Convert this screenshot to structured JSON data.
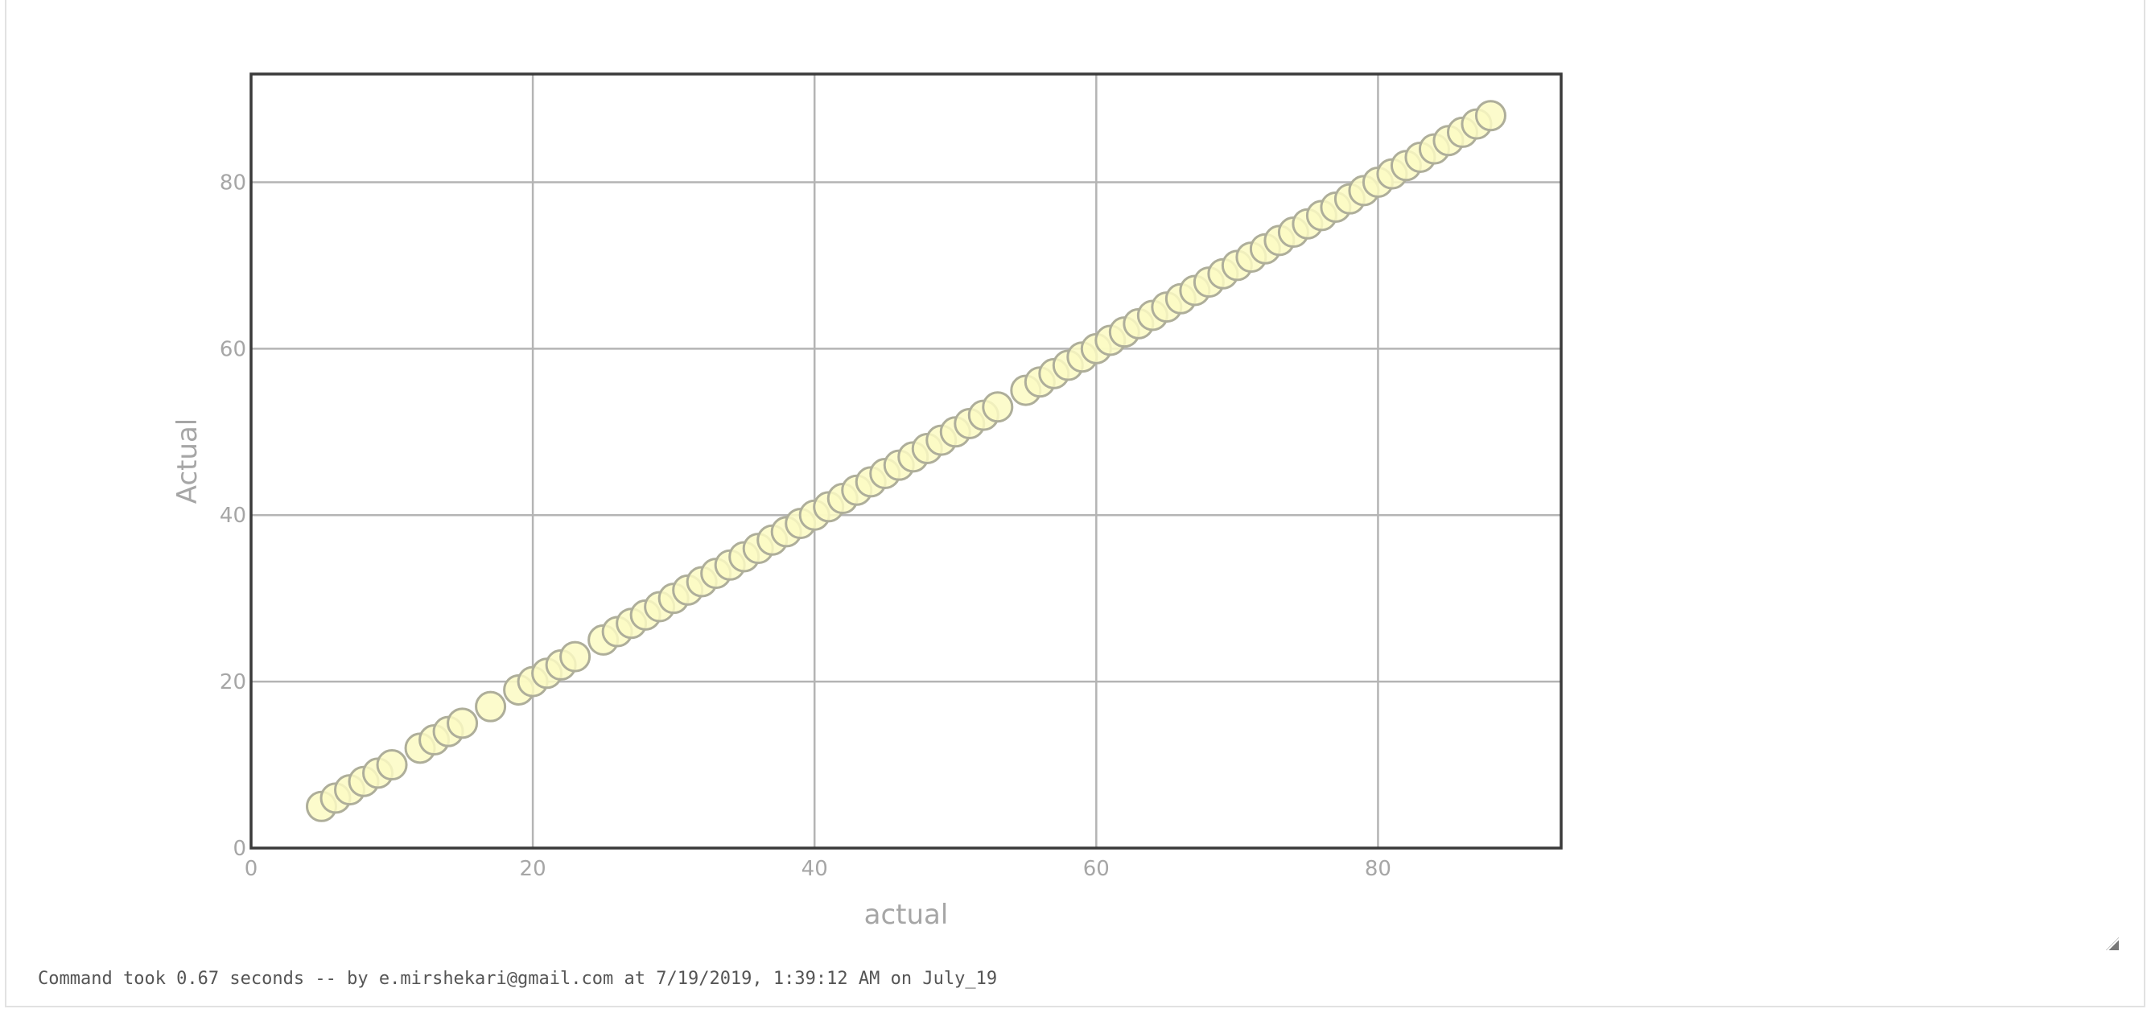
{
  "chart_data": {
    "type": "scatter",
    "title": "",
    "xlabel": "actual",
    "ylabel": "Actual",
    "xlim": [
      0,
      93
    ],
    "ylim": [
      0,
      93
    ],
    "xticks": [
      0,
      20,
      40,
      60,
      80
    ],
    "yticks": [
      0,
      20,
      40,
      60,
      80
    ],
    "grid": true,
    "series": [
      {
        "points": [
          [
            5,
            5
          ],
          [
            6,
            6
          ],
          [
            7,
            7
          ],
          [
            8,
            8
          ],
          [
            9,
            9
          ],
          [
            10,
            10
          ],
          [
            12,
            12
          ],
          [
            13,
            13
          ],
          [
            14,
            14
          ],
          [
            15,
            15
          ],
          [
            17,
            17
          ],
          [
            19,
            19
          ],
          [
            20,
            20
          ],
          [
            21,
            21
          ],
          [
            22,
            22
          ],
          [
            23,
            23
          ],
          [
            25,
            25
          ],
          [
            26,
            26
          ],
          [
            27,
            27
          ],
          [
            28,
            28
          ],
          [
            29,
            29
          ],
          [
            30,
            30
          ],
          [
            31,
            31
          ],
          [
            32,
            32
          ],
          [
            33,
            33
          ],
          [
            34,
            34
          ],
          [
            35,
            35
          ],
          [
            36,
            36
          ],
          [
            37,
            37
          ],
          [
            38,
            38
          ],
          [
            39,
            39
          ],
          [
            40,
            40
          ],
          [
            41,
            41
          ],
          [
            42,
            42
          ],
          [
            43,
            43
          ],
          [
            44,
            44
          ],
          [
            45,
            45
          ],
          [
            46,
            46
          ],
          [
            47,
            47
          ],
          [
            48,
            48
          ],
          [
            49,
            49
          ],
          [
            50,
            50
          ],
          [
            51,
            51
          ],
          [
            52,
            52
          ],
          [
            53,
            53
          ],
          [
            55,
            55
          ],
          [
            56,
            56
          ],
          [
            57,
            57
          ],
          [
            58,
            58
          ],
          [
            59,
            59
          ],
          [
            60,
            60
          ],
          [
            61,
            61
          ],
          [
            62,
            62
          ],
          [
            63,
            63
          ],
          [
            64,
            64
          ],
          [
            65,
            65
          ],
          [
            66,
            66
          ],
          [
            67,
            67
          ],
          [
            68,
            68
          ],
          [
            69,
            69
          ],
          [
            70,
            70
          ],
          [
            71,
            71
          ],
          [
            72,
            72
          ],
          [
            73,
            73
          ],
          [
            74,
            74
          ],
          [
            75,
            75
          ],
          [
            76,
            76
          ],
          [
            77,
            77
          ],
          [
            78,
            78
          ],
          [
            79,
            79
          ],
          [
            80,
            80
          ],
          [
            81,
            81
          ],
          [
            82,
            82
          ],
          [
            83,
            83
          ],
          [
            84,
            84
          ],
          [
            85,
            85
          ],
          [
            86,
            86
          ],
          [
            87,
            87
          ],
          [
            88,
            88
          ]
        ],
        "color": "#fbfac3"
      }
    ]
  },
  "status": {
    "text": "Command took 0.67 seconds -- by e.mirshekari@gmail.com at 7/19/2019, 1:39:12 AM on July_19"
  },
  "colors": {
    "marker_fill": "#fbfac3",
    "marker_stroke": "#aeae9a",
    "grid": "#b4b4b4",
    "frame": "#3a3a3a",
    "tick_text": "#a6a6a6"
  }
}
